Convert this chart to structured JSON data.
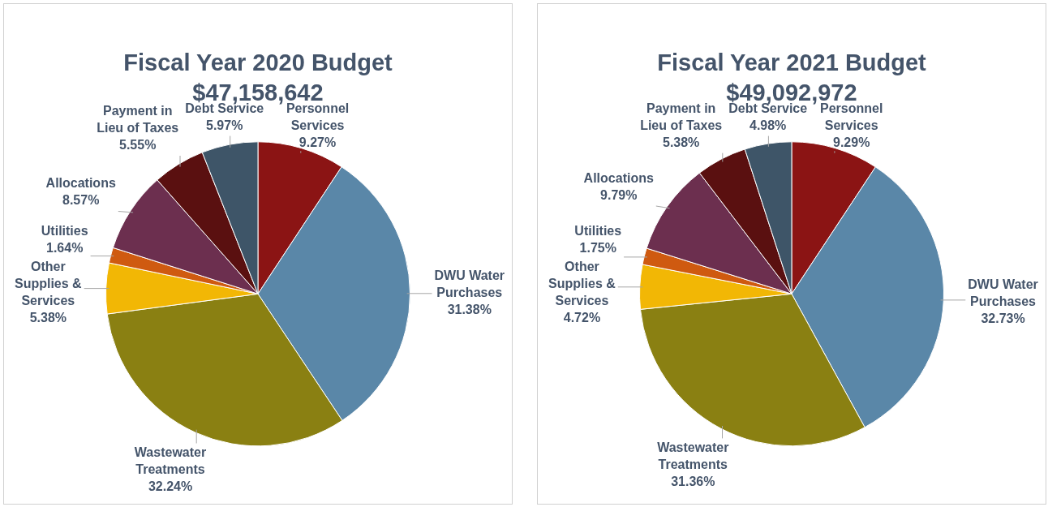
{
  "chart_data": [
    {
      "type": "pie",
      "title": "Fiscal Year 2020 Budget",
      "subtitle": "$47,158,642",
      "categories": [
        "Personnel Services",
        "DWU Water Purchases",
        "Wastewater Treatments",
        "Other Supplies & Services",
        "Utilities",
        "Allocations",
        "Payment in Lieu of Taxes",
        "Debt Service"
      ],
      "values": [
        9.27,
        31.38,
        32.24,
        5.38,
        1.64,
        8.57,
        5.55,
        5.97
      ],
      "value_labels": [
        "9.27%",
        "31.38%",
        "32.24%",
        "5.38%",
        "1.64%",
        "8.57%",
        "5.55%",
        "5.97%"
      ],
      "colors": [
        "#8b1414",
        "#5a87a8",
        "#8a8012",
        "#f2b705",
        "#cf5a10",
        "#6c2f4f",
        "#5a1010",
        "#3e5568"
      ],
      "legend": false
    },
    {
      "type": "pie",
      "title": "Fiscal Year 2021 Budget",
      "subtitle": "$49,092,972",
      "categories": [
        "Personnel Services",
        "DWU Water Purchases",
        "Wastewater Treatments",
        "Other Supplies & Services",
        "Utilities",
        "Allocations",
        "Payment in Lieu of Taxes",
        "Debt Service"
      ],
      "values": [
        9.29,
        32.73,
        31.36,
        4.72,
        1.75,
        9.79,
        5.38,
        4.98
      ],
      "value_labels": [
        "9.29%",
        "32.73%",
        "31.36%",
        "4.72%",
        "1.75%",
        "9.79%",
        "5.38%",
        "4.98%"
      ],
      "colors": [
        "#8b1414",
        "#5a87a8",
        "#8a8012",
        "#f2b705",
        "#cf5a10",
        "#6c2f4f",
        "#5a1010",
        "#3e5568"
      ],
      "legend": false
    }
  ]
}
